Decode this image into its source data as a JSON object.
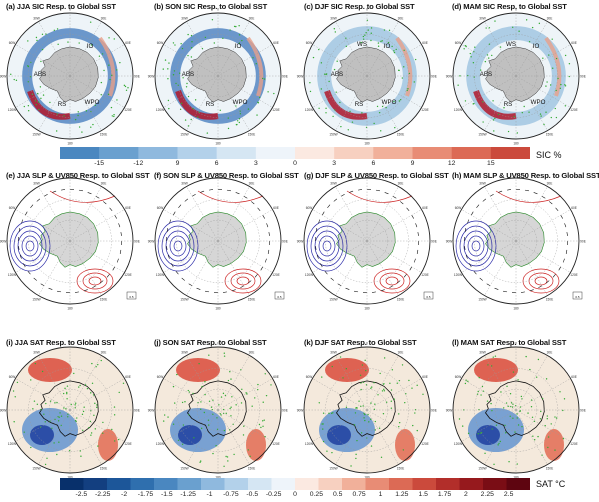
{
  "rows": [
    {
      "kind": "sic",
      "panels": [
        {
          "title": "(a) JJA SIC Resp. to Global SST",
          "labels": [
            "ABS",
            "RS",
            "WPO",
            "IO"
          ]
        },
        {
          "title": "(b) SON SIC Resp. to Global SST",
          "labels": [
            "ABS",
            "RS",
            "WPO",
            "IO"
          ]
        },
        {
          "title": "(c) DJF SIC Resp. to Global SST",
          "labels": [
            "ABS",
            "RS",
            "WPO",
            "IO",
            "WS"
          ]
        },
        {
          "title": "(d) MAM SIC Resp. to Global SST",
          "labels": [
            "ABS",
            "RS",
            "WPO",
            "WS",
            "IO"
          ]
        }
      ]
    },
    {
      "kind": "slp",
      "panels": [
        {
          "title": "(e) JJA SLP & UV850 Resp. to Global SST"
        },
        {
          "title": "(f) SON SLP & UV850 Resp. to Global SST"
        },
        {
          "title": "(g) DJF SLP & UV850 Resp. to Global SST"
        },
        {
          "title": "(h) MAM SLP & UV850 Resp. to Global SST"
        }
      ]
    },
    {
      "kind": "sat",
      "panels": [
        {
          "title": "(i) JJA SAT Resp. to Global SST"
        },
        {
          "title": "(j) SON SAT Resp. to Global SST"
        },
        {
          "title": "(k) DJF SAT Resp. to Global SST"
        },
        {
          "title": "(l) MAM SAT Resp. to Global SST"
        }
      ]
    }
  ],
  "colorbars": {
    "sic": {
      "label": "SIC %",
      "ticks": [
        "-15",
        "-12",
        "9",
        "6",
        "3",
        "0",
        "3",
        "6",
        "9",
        "12",
        "15"
      ]
    },
    "sat": {
      "label": "SAT °C",
      "ticks": [
        "-2.5",
        "-2.25",
        "-2",
        "-1.75",
        "-1.5",
        "-1.25",
        "-1",
        "-0.75",
        "-0.5",
        "-0.25",
        "0",
        "0.25",
        "0.5",
        "0.75",
        "1",
        "1.25",
        "1.5",
        "1.75",
        "2",
        "2.25",
        "2.5"
      ]
    }
  },
  "map_ticks": [
    "0",
    "30W",
    "60W",
    "90W",
    "120W",
    "150W",
    "180",
    "150E",
    "120E",
    "90E",
    "60E",
    "30E"
  ],
  "vector_ref": "0.5",
  "colors": {
    "ice_negative": "#2a5fa5",
    "ice_positive": "#b2182b",
    "slp_contour_positive": "#cc2222",
    "slp_contour_negative": "#2a2aa8",
    "significance": "#33aa33",
    "land": "#c0c0c0"
  }
}
